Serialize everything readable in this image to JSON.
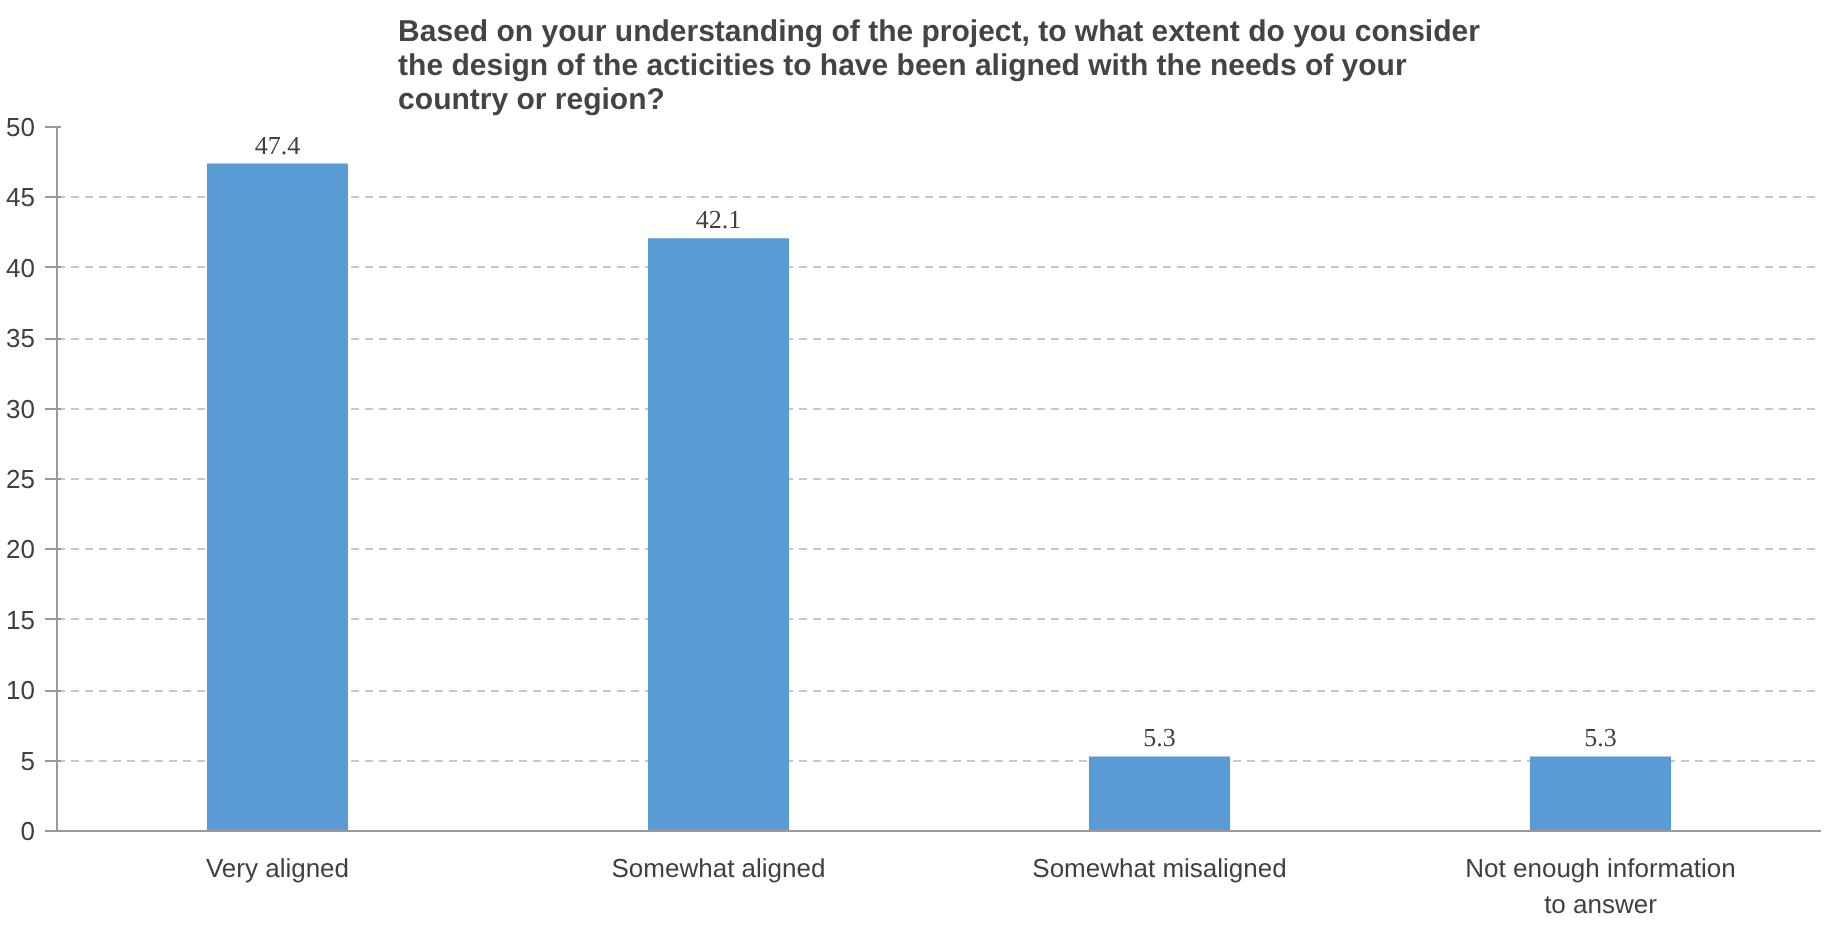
{
  "chart_data": {
    "type": "bar",
    "title": "Based on your understanding of the project, to what extent do you consider the design of the acticities to have been aligned with the needs of your country or region?",
    "categories": [
      "Very aligned",
      "Somewhat aligned",
      "Somewhat misaligned",
      "Not enough information to answer"
    ],
    "values": [
      47.4,
      42.1,
      5.3,
      5.3
    ],
    "color": "#5b9bd5",
    "data_labels": true,
    "ylim": [
      0,
      50
    ],
    "yticks": [
      0,
      5,
      10,
      15,
      20,
      25,
      30,
      35,
      40,
      45,
      50
    ],
    "grid": "y"
  }
}
